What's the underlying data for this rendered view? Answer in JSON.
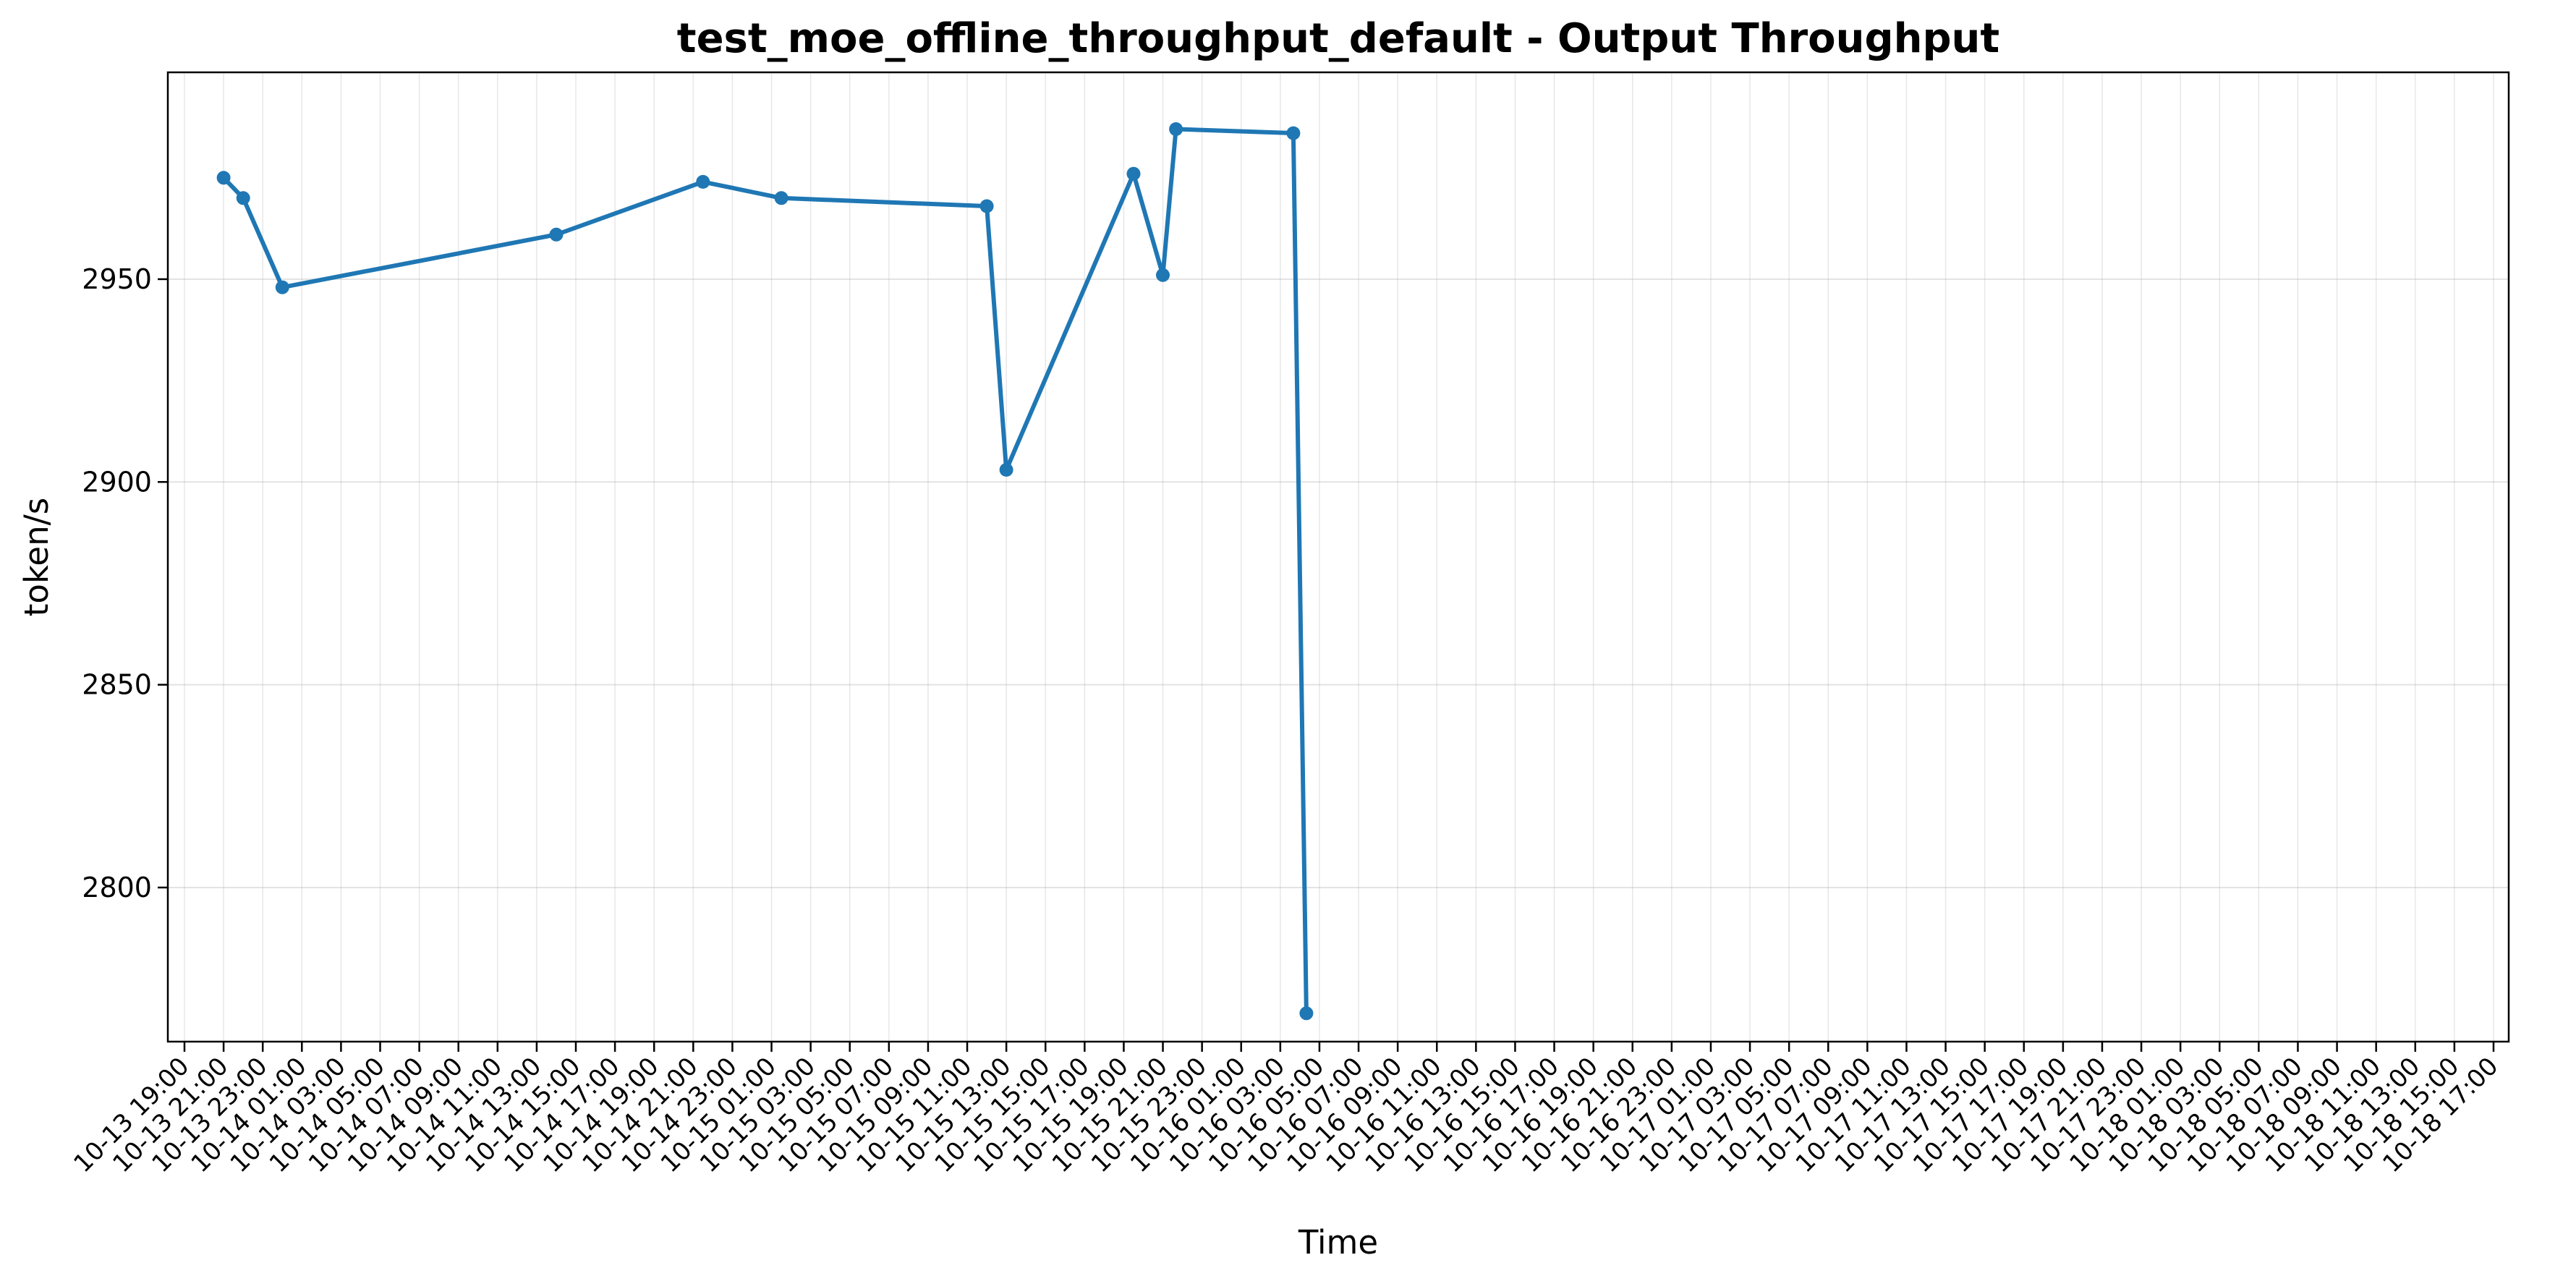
{
  "chart_data": {
    "type": "line",
    "title": "test_moe_offline_throughput_default - Output Throughput",
    "xlabel": "Time",
    "ylabel": "token/s",
    "ylim": [
      2762,
      3001
    ],
    "yticks": [
      2800,
      2850,
      2900,
      2950
    ],
    "grid": true,
    "legend": "none",
    "line_color": "#1f77b4",
    "xtick_labels": [
      "10-13 19:00",
      "10-13 21:00",
      "10-13 23:00",
      "10-14 01:00",
      "10-14 03:00",
      "10-14 05:00",
      "10-14 07:00",
      "10-14 09:00",
      "10-14 11:00",
      "10-14 13:00",
      "10-14 15:00",
      "10-14 17:00",
      "10-14 19:00",
      "10-14 21:00",
      "10-14 23:00",
      "10-15 01:00",
      "10-15 03:00",
      "10-15 05:00",
      "10-15 07:00",
      "10-15 09:00",
      "10-15 11:00",
      "10-15 13:00",
      "10-15 15:00",
      "10-15 17:00",
      "10-15 19:00",
      "10-15 21:00",
      "10-15 23:00",
      "10-16 01:00",
      "10-16 03:00",
      "10-16 05:00",
      "10-16 07:00",
      "10-16 09:00",
      "10-16 11:00",
      "10-16 13:00",
      "10-16 15:00",
      "10-16 17:00",
      "10-16 19:00",
      "10-16 21:00",
      "10-16 23:00",
      "10-17 01:00",
      "10-17 03:00",
      "10-17 05:00",
      "10-17 07:00",
      "10-17 09:00",
      "10-17 11:00",
      "10-17 13:00",
      "10-17 15:00",
      "10-17 17:00",
      "10-17 19:00",
      "10-17 21:00",
      "10-17 23:00",
      "10-18 01:00",
      "10-18 03:00",
      "10-18 05:00",
      "10-18 07:00",
      "10-18 09:00",
      "10-18 11:00",
      "10-18 13:00",
      "10-18 15:00",
      "10-18 17:00"
    ],
    "x": [
      "10-13 21:00",
      "10-13 22:00",
      "10-14 00:00",
      "10-14 14:00",
      "10-14 21:30",
      "10-15 01:30",
      "10-15 12:00",
      "10-15 13:00",
      "10-15 19:30",
      "10-15 21:00",
      "10-15 21:40",
      "10-16 03:40",
      "10-16 04:20"
    ],
    "series": [
      {
        "values": [
          2975,
          2970,
          2948,
          2961,
          2974,
          2970,
          2968,
          2903,
          2976,
          2951,
          2987,
          2986,
          2769
        ]
      }
    ]
  }
}
